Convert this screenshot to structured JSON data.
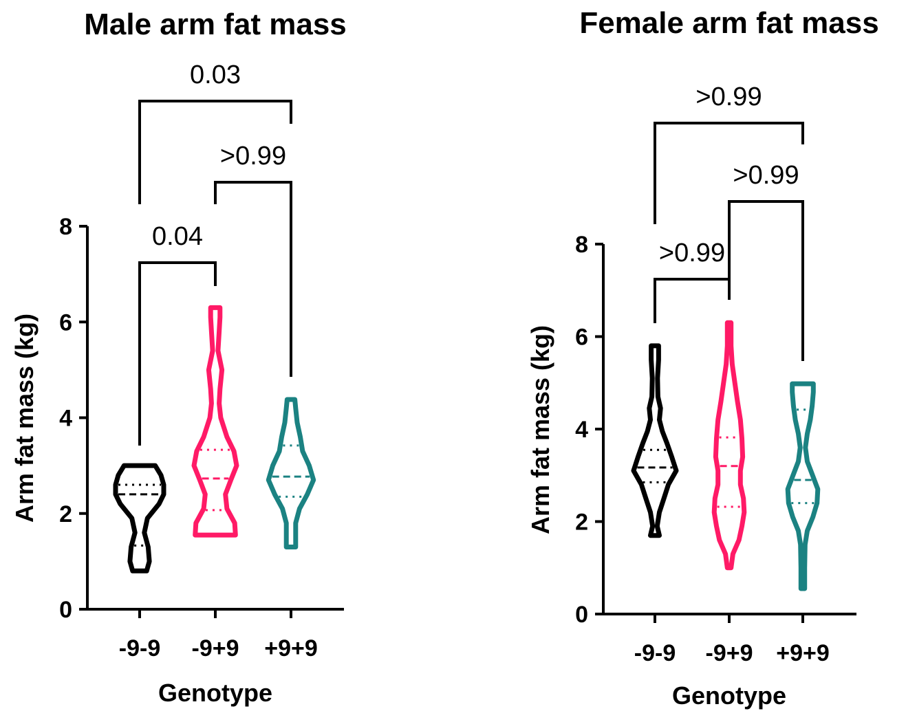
{
  "chart_data": [
    {
      "type": "violin",
      "title": "Male arm fat mass",
      "xlabel": "Genotype",
      "ylabel": "Arm fat mass (kg)",
      "ylim": [
        0,
        8
      ],
      "yticks": [
        "0",
        "2",
        "4",
        "6",
        "8"
      ],
      "categories": [
        "-9-9",
        "-9+9",
        "+9+9"
      ],
      "series": [
        {
          "category": "-9-9",
          "color": "#000000",
          "min": 0.8,
          "max": 3.0,
          "median": 2.4,
          "q1": 1.33,
          "q3": 2.6,
          "density": [
            [
              0.8,
              0.18
            ],
            [
              1.0,
              0.25
            ],
            [
              1.3,
              0.22
            ],
            [
              1.6,
              0.12
            ],
            [
              1.9,
              0.2
            ],
            [
              2.2,
              0.5
            ],
            [
              2.4,
              0.62
            ],
            [
              2.6,
              0.62
            ],
            [
              2.8,
              0.55
            ],
            [
              3.0,
              0.4
            ]
          ]
        },
        {
          "category": "-9+9",
          "color": "#ff1a66",
          "min": 1.55,
          "max": 6.3,
          "median": 2.73,
          "q1": 2.07,
          "q3": 3.33,
          "density": [
            [
              1.55,
              0.52
            ],
            [
              1.8,
              0.5
            ],
            [
              2.1,
              0.3
            ],
            [
              2.4,
              0.26
            ],
            [
              2.7,
              0.4
            ],
            [
              3.0,
              0.55
            ],
            [
              3.3,
              0.48
            ],
            [
              3.6,
              0.3
            ],
            [
              4.0,
              0.14
            ],
            [
              4.3,
              0.1
            ],
            [
              4.6,
              0.12
            ],
            [
              5.0,
              0.17
            ],
            [
              5.4,
              0.07
            ],
            [
              5.8,
              0.1
            ],
            [
              6.1,
              0.12
            ],
            [
              6.3,
              0.12
            ]
          ]
        },
        {
          "category": "+9+9",
          "color": "#1b8282",
          "min": 1.3,
          "max": 4.38,
          "median": 2.77,
          "q1": 2.35,
          "q3": 3.42,
          "density": [
            [
              1.3,
              0.12
            ],
            [
              1.5,
              0.12
            ],
            [
              1.8,
              0.12
            ],
            [
              2.1,
              0.22
            ],
            [
              2.4,
              0.42
            ],
            [
              2.7,
              0.58
            ],
            [
              3.0,
              0.47
            ],
            [
              3.3,
              0.3
            ],
            [
              3.6,
              0.24
            ],
            [
              3.9,
              0.16
            ],
            [
              4.2,
              0.12
            ],
            [
              4.38,
              0.1
            ]
          ]
        }
      ],
      "comparisons": [
        {
          "from": "-9-9",
          "to": "+9+9",
          "label": "0.03",
          "level": 3
        },
        {
          "from": "-9+9",
          "to": "+9+9",
          "label": ">0.99",
          "level": 2
        },
        {
          "from": "-9-9",
          "to": "-9+9",
          "label": "0.04",
          "level": 1
        }
      ]
    },
    {
      "type": "violin",
      "title": "Female arm fat mass",
      "xlabel": "Genotype",
      "ylabel": "Arm fat mass (kg)",
      "ylim": [
        0,
        8
      ],
      "yticks": [
        "0",
        "2",
        "4",
        "6",
        "8"
      ],
      "categories": [
        "-9-9",
        "-9+9",
        "+9+9"
      ],
      "series": [
        {
          "category": "-9-9",
          "color": "#000000",
          "min": 1.7,
          "max": 5.8,
          "median": 3.17,
          "q1": 2.85,
          "q3": 3.55,
          "density": [
            [
              1.7,
              0.12
            ],
            [
              1.9,
              0.06
            ],
            [
              2.2,
              0.12
            ],
            [
              2.5,
              0.24
            ],
            [
              2.8,
              0.36
            ],
            [
              3.1,
              0.57
            ],
            [
              3.4,
              0.45
            ],
            [
              3.7,
              0.32
            ],
            [
              3.95,
              0.2
            ],
            [
              4.2,
              0.12
            ],
            [
              4.45,
              0.15
            ],
            [
              4.7,
              0.08
            ],
            [
              5.1,
              0.07
            ],
            [
              5.5,
              0.1
            ],
            [
              5.8,
              0.1
            ]
          ]
        },
        {
          "category": "-9+9",
          "color": "#ff1a66",
          "min": 1.0,
          "max": 6.3,
          "median": 3.2,
          "q1": 2.32,
          "q3": 3.82,
          "density": [
            [
              1.0,
              0.05
            ],
            [
              1.3,
              0.1
            ],
            [
              1.6,
              0.26
            ],
            [
              1.9,
              0.34
            ],
            [
              2.2,
              0.4
            ],
            [
              2.5,
              0.38
            ],
            [
              2.8,
              0.3
            ],
            [
              3.1,
              0.3
            ],
            [
              3.4,
              0.36
            ],
            [
              3.8,
              0.34
            ],
            [
              4.2,
              0.3
            ],
            [
              4.6,
              0.22
            ],
            [
              5.0,
              0.15
            ],
            [
              5.4,
              0.08
            ],
            [
              5.8,
              0.05
            ],
            [
              6.3,
              0.05
            ]
          ]
        },
        {
          "category": "+9+9",
          "color": "#1b8282",
          "min": 0.55,
          "max": 4.98,
          "median": 2.9,
          "q1": 2.4,
          "q3": 4.42,
          "density": [
            [
              0.55,
              0.05
            ],
            [
              1.0,
              0.05
            ],
            [
              1.5,
              0.06
            ],
            [
              1.8,
              0.12
            ],
            [
              2.1,
              0.27
            ],
            [
              2.4,
              0.38
            ],
            [
              2.7,
              0.4
            ],
            [
              3.0,
              0.26
            ],
            [
              3.3,
              0.12
            ],
            [
              3.6,
              0.07
            ],
            [
              3.9,
              0.12
            ],
            [
              4.2,
              0.2
            ],
            [
              4.5,
              0.25
            ],
            [
              4.8,
              0.28
            ],
            [
              4.98,
              0.28
            ]
          ]
        }
      ],
      "comparisons": [
        {
          "from": "-9-9",
          "to": "+9+9",
          "label": ">0.99",
          "level": 3
        },
        {
          "from": "-9+9",
          "to": "+9+9",
          "label": ">0.99",
          "level": 2
        },
        {
          "from": "-9-9",
          "to": "-9+9",
          "label": ">0.99",
          "level": 1
        }
      ]
    }
  ]
}
